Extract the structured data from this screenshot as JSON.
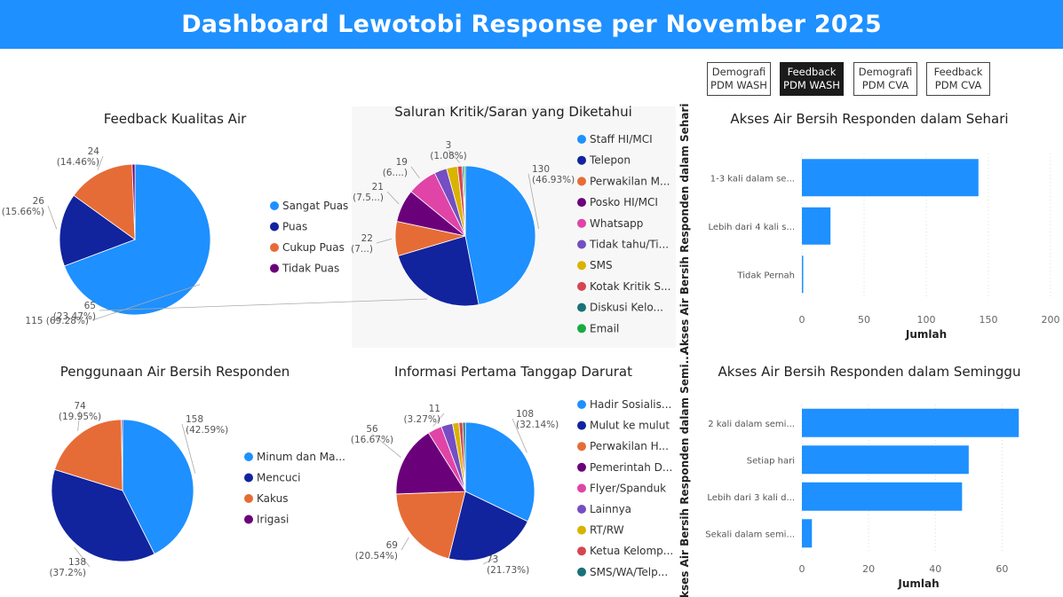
{
  "header": {
    "title": "Dashboard Lewotobi Response per November 2025"
  },
  "tabs": [
    {
      "line1": "Demografi",
      "line2": "PDM WASH",
      "active": false
    },
    {
      "line1": "Feedback",
      "line2": "PDM WASH",
      "active": true
    },
    {
      "line1": "Demografi",
      "line2": "PDM CVA",
      "active": false
    },
    {
      "line1": "Feedback",
      "line2": "PDM CVA",
      "active": false
    }
  ],
  "chart_data": [
    {
      "id": "kualitas-air",
      "type": "pie",
      "title": "Feedback Kualitas Air",
      "slices": [
        {
          "name": "Sangat Puas",
          "value": 115,
          "label": "115 (69.28%)",
          "color": "#1E90FF"
        },
        {
          "name": "Puas",
          "value": 26,
          "label": "26 (15.66%)",
          "color": "#12239E"
        },
        {
          "name": "Cukup Puas",
          "value": 24,
          "label": "24 (14.46%)",
          "color": "#E66C37"
        },
        {
          "name": "Tidak Puas",
          "value": 1,
          "label": "",
          "color": "#6B007B"
        }
      ]
    },
    {
      "id": "saluran-kritik",
      "type": "pie",
      "title": "Saluran Kritik/Saran yang Diketahui",
      "slices": [
        {
          "name": "Staff HI/MCI",
          "value": 130,
          "label": "130 (46.93%)",
          "color": "#1E90FF"
        },
        {
          "name": "Telepon",
          "value": 65,
          "label": "65 (23.47%)",
          "color": "#12239E"
        },
        {
          "name": "Perwakilan M...",
          "value": 22,
          "label": "22 (7...)",
          "color": "#E66C37"
        },
        {
          "name": "Posko HI/MCI",
          "value": 21,
          "label": "21 (7.5...)",
          "color": "#6B007B"
        },
        {
          "name": "Whatsapp",
          "value": 19,
          "label": "19 (6....)",
          "color": "#E044A7"
        },
        {
          "name": "Tidak tahu/Ti...",
          "value": 8,
          "label": "",
          "color": "#744EC2"
        },
        {
          "name": "SMS",
          "value": 7,
          "label": "",
          "color": "#D9B300"
        },
        {
          "name": "Kotak Kritik S...",
          "value": 3,
          "label": "3 (1.08%)",
          "color": "#D64550"
        },
        {
          "name": "Diskusi Kelo...",
          "value": 1,
          "label": "",
          "color": "#197278"
        },
        {
          "name": "Email",
          "value": 1,
          "label": "",
          "color": "#1AAB40"
        }
      ]
    },
    {
      "id": "akses-sehari",
      "type": "bar",
      "orientation": "horizontal",
      "title": "Akses Air Bersih Responden dalam Sehari",
      "xlabel": "Jumlah",
      "ylabel": "Akses Air Bersih Responden dalam Sehari",
      "categories": [
        "1-3 kali dalam se...",
        "Lebih dari 4 kali s...",
        "Tidak Pernah"
      ],
      "values": [
        142,
        23,
        1
      ],
      "xlim": [
        0,
        200
      ],
      "xticks": [
        0,
        50,
        100,
        150,
        200
      ],
      "color": "#1E90FF"
    },
    {
      "id": "penggunaan-air",
      "type": "pie",
      "title": "Penggunaan Air Bersih Responden",
      "slices": [
        {
          "name": "Minum dan Ma...",
          "value": 158,
          "label": "158 (42.59%)",
          "color": "#1E90FF"
        },
        {
          "name": "Mencuci",
          "value": 138,
          "label": "138 (37.2%)",
          "color": "#12239E"
        },
        {
          "name": "Kakus",
          "value": 74,
          "label": "74 (19.95%)",
          "color": "#E66C37"
        },
        {
          "name": "Irigasi",
          "value": 1,
          "label": "",
          "color": "#6B007B"
        }
      ]
    },
    {
      "id": "informasi-pertama",
      "type": "pie",
      "title": "Informasi Pertama Tanggap Darurat",
      "slices": [
        {
          "name": "Hadir Sosialis...",
          "value": 108,
          "label": "108 (32.14%)",
          "color": "#1E90FF"
        },
        {
          "name": "Mulut ke mulut",
          "value": 73,
          "label": "73 (21.73%)",
          "color": "#12239E"
        },
        {
          "name": "Perwakilan H...",
          "value": 69,
          "label": "69 (20.54%)",
          "color": "#E66C37"
        },
        {
          "name": "Pemerintah D...",
          "value": 56,
          "label": "56 (16.67%)",
          "color": "#6B007B"
        },
        {
          "name": "Flyer/Spanduk",
          "value": 11,
          "label": "11 (3.27%)",
          "color": "#E044A7"
        },
        {
          "name": "Lainnya",
          "value": 9,
          "label": "",
          "color": "#744EC2"
        },
        {
          "name": "RT/RW",
          "value": 5,
          "label": "",
          "color": "#D9B300"
        },
        {
          "name": "Ketua Kelomp...",
          "value": 3,
          "label": "",
          "color": "#D64550"
        },
        {
          "name": "SMS/WA/Telp...",
          "value": 2,
          "label": "",
          "color": "#197278"
        }
      ]
    },
    {
      "id": "akses-seminggu",
      "type": "bar",
      "orientation": "horizontal",
      "title": "Akses Air Bersih Responden dalam Seminggu",
      "xlabel": "Jumlah",
      "ylabel": "Akses Air Bersih Responden dalam Semi...",
      "categories": [
        "2 kali dalam semi...",
        "Setiap hari",
        "Lebih dari 3 kali d...",
        "Sekali dalam semi..."
      ],
      "values": [
        65,
        50,
        48,
        3
      ],
      "xlim": [
        0,
        70
      ],
      "xticks": [
        0,
        20,
        40,
        60
      ],
      "color": "#1E90FF"
    }
  ]
}
